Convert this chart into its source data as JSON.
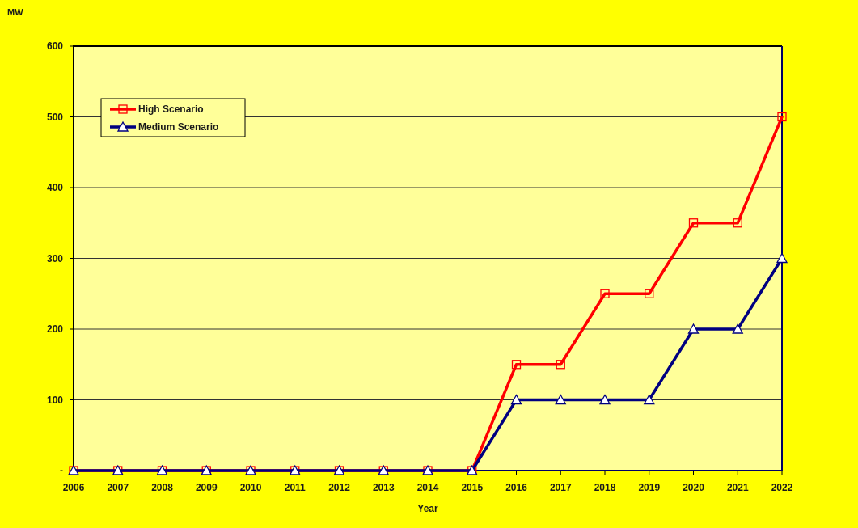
{
  "chart_data": {
    "type": "line",
    "xlabel": "Year",
    "ylabel": "MW",
    "categories": [
      "2006",
      "2007",
      "2008",
      "2009",
      "2010",
      "2011",
      "2012",
      "2013",
      "2014",
      "2015",
      "2016",
      "2017",
      "2018",
      "2019",
      "2020",
      "2021",
      "2022"
    ],
    "series": [
      {
        "name": "High Scenario",
        "color": "#ff0000",
        "marker": "square",
        "values": [
          0,
          0,
          0,
          0,
          0,
          0,
          0,
          0,
          0,
          0,
          150,
          150,
          250,
          250,
          350,
          350,
          500
        ]
      },
      {
        "name": "Medium Scenario",
        "color": "#000080",
        "marker": "triangle",
        "values": [
          0,
          0,
          0,
          0,
          0,
          0,
          0,
          0,
          0,
          0,
          100,
          100,
          100,
          100,
          200,
          200,
          300
        ]
      }
    ],
    "ylim": [
      0,
      600
    ],
    "yticks": [
      {
        "value": 0,
        "label": "-"
      },
      100,
      200,
      300,
      400,
      500,
      600
    ],
    "grid": "y",
    "legend": "top left",
    "line_style": "solid"
  }
}
